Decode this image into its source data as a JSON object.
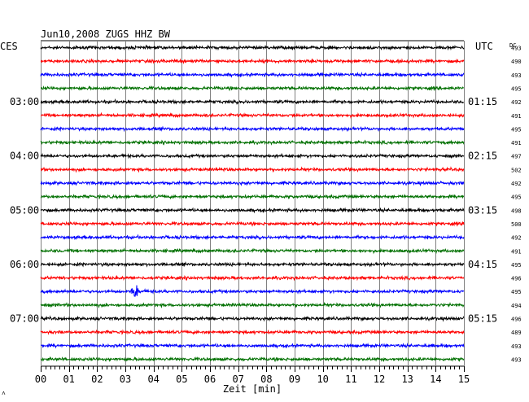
{
  "chart_data": {
    "type": "line",
    "title": "Jun10,2008   ZUGS HHZ BW",
    "left_header": "CES",
    "right_header": "UTC",
    "dc_header": "DC",
    "xlabel": "Zeit [min]",
    "xlim": [
      0,
      15
    ],
    "x_ticks": [
      "00",
      "01",
      "02",
      "03",
      "04",
      "05",
      "06",
      "07",
      "08",
      "09",
      "10",
      "11",
      "12",
      "13",
      "14",
      "15"
    ],
    "left_hour_labels": [
      "03:00",
      "04:00",
      "05:00",
      "06:00",
      "07:00"
    ],
    "right_hour_labels": [
      "01:15",
      "02:15",
      "03:15",
      "04:15",
      "05:15"
    ],
    "trace_colors": [
      "#000000",
      "#ff0000",
      "#0000ff",
      "#007000"
    ],
    "dc_values": [
      493,
      490,
      493,
      495,
      492,
      491,
      495,
      491,
      497,
      502,
      492,
      495,
      498,
      500,
      492,
      491,
      495,
      496,
      495,
      494,
      496,
      489,
      493,
      493
    ],
    "events": [
      {
        "trace_index": 18,
        "start_min": 3.2,
        "end_min": 4.0,
        "label": ""
      }
    ],
    "footer_mark": "˄"
  }
}
